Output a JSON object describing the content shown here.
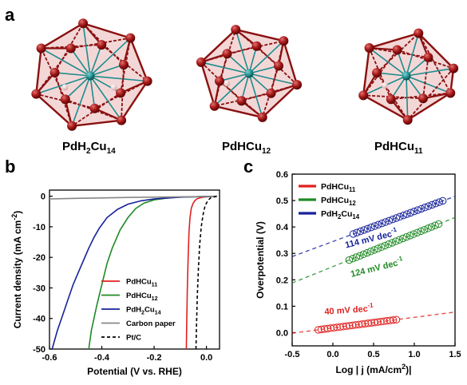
{
  "panel_a": {
    "letter": "a",
    "clusters": [
      {
        "label": "PdH",
        "sub1": "2",
        "mid": "Cu",
        "sub2": "14"
      },
      {
        "label": "PdHCu",
        "sub1": "",
        "mid": "",
        "sub2": "12"
      },
      {
        "label": "PdHCu",
        "sub1": "",
        "mid": "",
        "sub2": "11"
      }
    ]
  },
  "colors": {
    "PdHCu11": "#e0211f",
    "PdHCu12": "#1f8a24",
    "PdH2Cu14": "#17229a",
    "carbon": "#888888",
    "ptc": "#000000",
    "cu_atom": "#9b1313",
    "pd_atom": "#1e8c8c",
    "h_atom": "#f3d2d2"
  },
  "chart_data": [
    {
      "panel": "b",
      "type": "line",
      "xlabel": "Potential (V vs. RHE)",
      "ylabel_main": "Current density (mA cm",
      "ylabel_sup": "-2",
      "ylabel_end": ")",
      "xlim": [
        -0.6,
        0.05
      ],
      "ylim": [
        -50,
        2
      ],
      "xticks": [
        -0.6,
        -0.4,
        -0.2,
        0.0
      ],
      "xtick_labels": [
        "-0.6",
        "-0.4",
        "-0.2",
        "0.0"
      ],
      "yticks": [
        0,
        -10,
        -20,
        -30,
        -40,
        -50
      ],
      "ytick_labels": [
        "0",
        "-10",
        "-20",
        "-30",
        "-40",
        "-50"
      ],
      "legend_position": "lower-left",
      "series": [
        {
          "key": "PdHCu11",
          "name_main": "PdHCu",
          "name_sub": "11",
          "name_pre": "",
          "name_sub0": "",
          "style": "solid",
          "x": [
            -0.077,
            -0.075,
            -0.073,
            -0.07,
            -0.067,
            -0.063,
            -0.058,
            -0.052,
            -0.045,
            -0.035,
            -0.02,
            0.0,
            0.02,
            0.04
          ],
          "y": [
            -50,
            -40,
            -30,
            -20,
            -12,
            -7,
            -4,
            -2.5,
            -1.5,
            -0.8,
            -0.4,
            -0.2,
            -0.1,
            0
          ]
        },
        {
          "key": "PdHCu12",
          "name_main": "PdHCu",
          "name_sub": "12",
          "name_pre": "",
          "name_sub0": "",
          "style": "solid",
          "x": [
            -0.45,
            -0.44,
            -0.42,
            -0.4,
            -0.38,
            -0.36,
            -0.33,
            -0.3,
            -0.27,
            -0.24,
            -0.2,
            -0.15,
            -0.1,
            0.0,
            0.04
          ],
          "y": [
            -50,
            -44,
            -36,
            -29,
            -22,
            -17,
            -11,
            -7,
            -4,
            -2.3,
            -1.2,
            -0.6,
            -0.3,
            -0.1,
            0
          ]
        },
        {
          "key": "PdH2Cu14",
          "name_main": "PdH",
          "name_sub": "2",
          "name_pre": "Cu",
          "name_sub0": "14",
          "style": "solid",
          "x": [
            -0.59,
            -0.57,
            -0.55,
            -0.53,
            -0.51,
            -0.49,
            -0.47,
            -0.45,
            -0.43,
            -0.41,
            -0.38,
            -0.34,
            -0.3,
            -0.25,
            -0.2,
            -0.1,
            0.0,
            0.04
          ],
          "y": [
            -50,
            -44,
            -39,
            -34,
            -29,
            -25,
            -21,
            -17,
            -13.5,
            -10.5,
            -7,
            -4.3,
            -2.6,
            -1.5,
            -0.9,
            -0.3,
            -0.1,
            0
          ]
        },
        {
          "key": "carbon",
          "name_main": "Carbon paper",
          "name_sub": "",
          "name_pre": "",
          "name_sub0": "",
          "style": "solid",
          "x": [
            -0.6,
            -0.5,
            -0.4,
            -0.3,
            -0.2,
            -0.1,
            0.0,
            0.04
          ],
          "y": [
            -0.9,
            -0.7,
            -0.55,
            -0.4,
            -0.3,
            -0.2,
            -0.1,
            0
          ]
        },
        {
          "key": "ptc",
          "name_main": "Pt/C",
          "name_sub": "",
          "name_pre": "",
          "name_sub0": "",
          "style": "dashed",
          "x": [
            -0.04,
            -0.038,
            -0.035,
            -0.031,
            -0.026,
            -0.02,
            -0.013,
            -0.005,
            0.005,
            0.015,
            0.03,
            0.045
          ],
          "y": [
            -50,
            -42,
            -33,
            -24,
            -16,
            -10,
            -6,
            -3,
            -1.5,
            -0.6,
            -0.2,
            0
          ]
        }
      ]
    },
    {
      "panel": "c",
      "type": "scatter",
      "xlabel_main": "Log | j (mA/cm",
      "xlabel_sup": "2",
      "xlabel_end": ")|",
      "ylabel": "Overpotential (V)",
      "xlim": [
        -0.5,
        1.5
      ],
      "ylim": [
        -0.05,
        0.6
      ],
      "xticks": [
        -0.5,
        0.0,
        0.5,
        1.0,
        1.5
      ],
      "xtick_labels": [
        "-0.5",
        "0.0",
        "0.5",
        "1.0",
        "1.5"
      ],
      "yticks": [
        0.0,
        0.1,
        0.2,
        0.3,
        0.4,
        0.5,
        0.6
      ],
      "ytick_labels": [
        "0.0",
        "0.1",
        "0.2",
        "0.3",
        "0.4",
        "0.5",
        "0.6"
      ],
      "legend_position": "top-left",
      "series": [
        {
          "key": "PdHCu11",
          "name_main": "PdHCu",
          "name_sub": "11",
          "name_pre": "",
          "name_sub0": "",
          "slope": 0.04,
          "intercept": 0.018,
          "x_range": [
            -0.18,
            0.78
          ],
          "fit_range": [
            -0.5,
            1.5
          ],
          "slope_label": "40 mV dec",
          "slope_sup": "-1"
        },
        {
          "key": "PdHCu12",
          "name_main": "PdHCu",
          "name_sub": "12",
          "name_pre": "",
          "name_sub0": "",
          "slope": 0.124,
          "intercept": 0.25,
          "x_range": [
            0.2,
            1.3
          ],
          "fit_range": [
            -0.5,
            1.5
          ],
          "slope_label": "124 mV dec",
          "slope_sup": "-1"
        },
        {
          "key": "PdH2Cu14",
          "name_main": "PdH",
          "name_sub": "2",
          "name_pre": "Cu",
          "name_sub0": "14",
          "slope": 0.114,
          "intercept": 0.345,
          "x_range": [
            0.25,
            1.35
          ],
          "fit_range": [
            -0.5,
            1.5
          ],
          "slope_label": "114 mV dec",
          "slope_sup": "-1"
        }
      ]
    }
  ]
}
